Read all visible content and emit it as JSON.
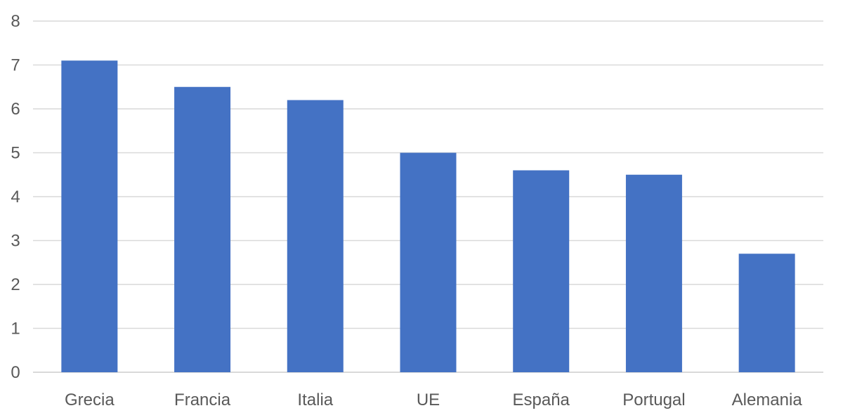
{
  "chart_data": {
    "type": "bar",
    "categories": [
      "Grecia",
      "Francia",
      "Italia",
      "UE",
      "España",
      "Portugal",
      "Alemania"
    ],
    "values": [
      7.1,
      6.5,
      6.2,
      5.0,
      4.6,
      4.5,
      2.7
    ],
    "ylim": [
      0,
      8
    ],
    "yticks": [
      0,
      1,
      2,
      3,
      4,
      5,
      6,
      7,
      8
    ],
    "grid": true,
    "legend": "none",
    "colors": {
      "bar": "#4472c4",
      "grid": "#d9d9d9",
      "text": "#595959"
    }
  }
}
